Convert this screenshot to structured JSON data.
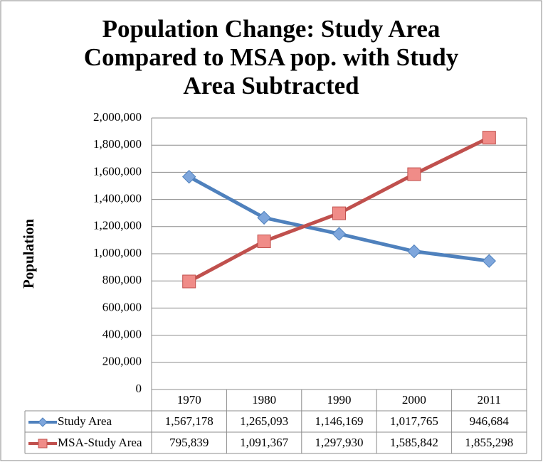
{
  "chart_data": {
    "type": "line",
    "title": [
      "Population Change: Study Area",
      "Compared to MSA pop. with Study",
      "Area Subtracted"
    ],
    "y_label": "Population",
    "categories": [
      "1970",
      "1980",
      "1990",
      "2000",
      "2011"
    ],
    "series": [
      {
        "name": "Study Area",
        "color": "#4f81bd",
        "marker": "diamond",
        "values": [
          1567178,
          1265093,
          1146169,
          1017765,
          946684
        ],
        "value_labels": [
          "1,567,178",
          "1,265,093",
          "1,146,169",
          "1,017,765",
          "946,684"
        ]
      },
      {
        "name": "MSA-Study Area",
        "color": "#c0504d",
        "marker": "square",
        "values": [
          795839,
          1091367,
          1297930,
          1585842,
          1855298
        ],
        "value_labels": [
          "795,839",
          "1,091,367",
          "1,297,930",
          "1,585,842",
          "1,855,298"
        ]
      }
    ],
    "ylim": [
      0,
      2000000
    ],
    "yticks": [
      0,
      {
        "value": 200000,
        "label": "200,000"
      },
      {
        "value": 400000,
        "label": "400,000"
      },
      {
        "value": 600000,
        "label": "600,000"
      },
      {
        "value": 800000,
        "label": "800,000"
      },
      {
        "value": 1000000,
        "label": "1,000,000"
      },
      {
        "value": 1200000,
        "label": "1,200,000"
      },
      {
        "value": 1400000,
        "label": "1,400,000"
      },
      {
        "value": 1600000,
        "label": "1,600,000"
      },
      {
        "value": 1800000,
        "label": "1,800,000"
      },
      {
        "value": 2000000,
        "label": "2,000,000"
      }
    ],
    "grid": true
  }
}
